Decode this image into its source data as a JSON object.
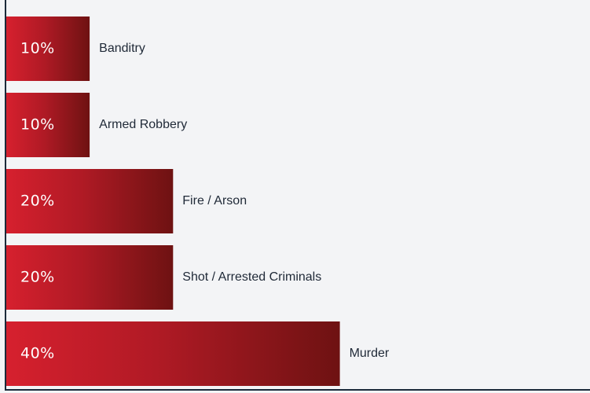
{
  "chart_data": {
    "type": "bar",
    "orientation": "horizontal",
    "categories": [
      "Banditry",
      "Armed Robbery",
      "Fire / Arson",
      "Shot / Arrested Criminals",
      "Murder"
    ],
    "values": [
      10,
      10,
      20,
      20,
      40
    ],
    "value_labels": [
      "10%",
      "10%",
      "20%",
      "20%",
      "40%"
    ],
    "unit": "%",
    "xlim": [
      0,
      70
    ],
    "grid": false,
    "legend": "none",
    "colors": {
      "bar_start": "#d6202e",
      "bar_end": "#6e1212",
      "axis": "#1b2a3a",
      "label_text": "#1f2937",
      "value_text": "#ffffff"
    }
  }
}
